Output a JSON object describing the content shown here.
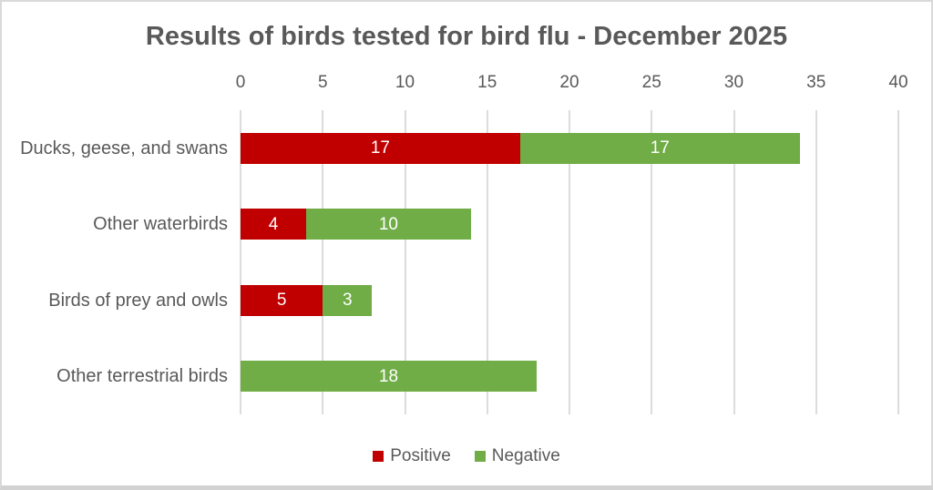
{
  "chart_data": {
    "type": "bar",
    "orientation": "horizontal",
    "stacked": true,
    "title": "Results of birds tested for bird flu - December 2025",
    "categories": [
      "Ducks, geese, and swans",
      "Other waterbirds",
      "Birds of prey and owls",
      "Other terrestrial birds"
    ],
    "series": [
      {
        "name": "Positive",
        "color": "#c00000",
        "values": [
          17,
          4,
          5,
          0
        ]
      },
      {
        "name": "Negative",
        "color": "#70ad47",
        "values": [
          17,
          10,
          3,
          18
        ]
      }
    ],
    "totals": [
      34,
      14,
      8,
      18
    ],
    "xlim": [
      0,
      40
    ],
    "xticks": [
      0,
      5,
      10,
      15,
      20,
      25,
      30,
      35,
      40
    ],
    "xaxis_position": "top",
    "grid": "vertical",
    "data_labels": "centered inside segments, white, hidden when value is 0",
    "legend_position": "bottom"
  },
  "theme": {
    "positive_color": "#c00000",
    "negative_color": "#70ad47",
    "text_color": "#595959",
    "gridline_color": "#dcdcdc",
    "data_label_color": "#ffffff",
    "background": "#ffffff",
    "frame_border_color": "#d9d9d9"
  }
}
